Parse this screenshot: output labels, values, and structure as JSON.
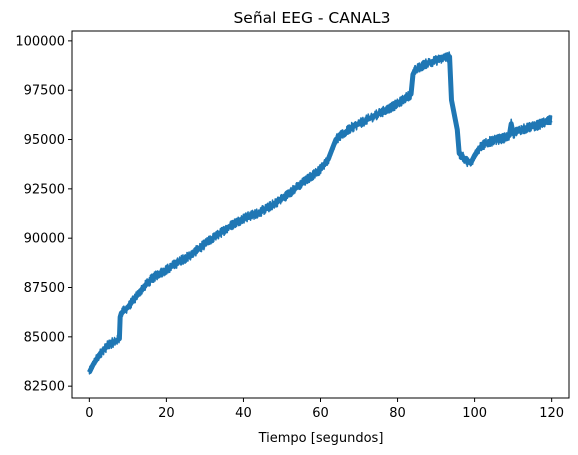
{
  "chart_data": {
    "type": "line",
    "title": "Señal EEG - CANAL3",
    "xlabel": "Tiempo [segundos]",
    "ylabel": "",
    "xlim": [
      -4.5,
      124.5
    ],
    "ylim": [
      81900,
      100500
    ],
    "xticks": [
      0,
      20,
      40,
      60,
      80,
      100,
      120
    ],
    "xtick_labels": [
      "0",
      "20",
      "40",
      "60",
      "80",
      "100",
      "120"
    ],
    "yticks": [
      82500,
      85000,
      87500,
      90000,
      92500,
      95000,
      97500,
      100000
    ],
    "ytick_labels": [
      "82500",
      "85000",
      "87500",
      "90000",
      "92500",
      "95000",
      "97500",
      "100000"
    ],
    "grid": false,
    "legend": "none",
    "series": [
      {
        "color": "#1f77b4",
        "noise_band": 250,
        "x": [
          0,
          1,
          2,
          3,
          4,
          5,
          6,
          7,
          7.8,
          8.0,
          8.3,
          10,
          12,
          14,
          16,
          18,
          20,
          22,
          24,
          26,
          28,
          30,
          32,
          34,
          36,
          38,
          40,
          42,
          44,
          46,
          48,
          50,
          52,
          54,
          56,
          58,
          60,
          62,
          63,
          64,
          66,
          68,
          70,
          72,
          74,
          76,
          78,
          80,
          82,
          83.5,
          84,
          84.5,
          86,
          88,
          90,
          92,
          93.5,
          94,
          94.5,
          95,
          95.5,
          96,
          97,
          98,
          99,
          100,
          101,
          102,
          104,
          106,
          108,
          109,
          109.5,
          110,
          111,
          112,
          114,
          116,
          118,
          120
        ],
        "y": [
          83200,
          83600,
          83900,
          84200,
          84400,
          84600,
          84700,
          84800,
          84900,
          86000,
          86200,
          86500,
          87000,
          87500,
          87900,
          88200,
          88400,
          88650,
          88900,
          89100,
          89400,
          89700,
          90000,
          90250,
          90550,
          90800,
          91000,
          91150,
          91300,
          91500,
          91750,
          92000,
          92300,
          92600,
          92900,
          93200,
          93500,
          94000,
          94500,
          95000,
          95300,
          95600,
          95800,
          96000,
          96200,
          96400,
          96600,
          96800,
          97100,
          97300,
          98300,
          98500,
          98700,
          98900,
          99000,
          99150,
          99200,
          97000,
          96500,
          96000,
          95500,
          94300,
          94100,
          93900,
          93800,
          94200,
          94500,
          94700,
          94900,
          95000,
          95100,
          95200,
          95800,
          95300,
          95400,
          95500,
          95600,
          95700,
          95850,
          96000
        ]
      }
    ]
  }
}
